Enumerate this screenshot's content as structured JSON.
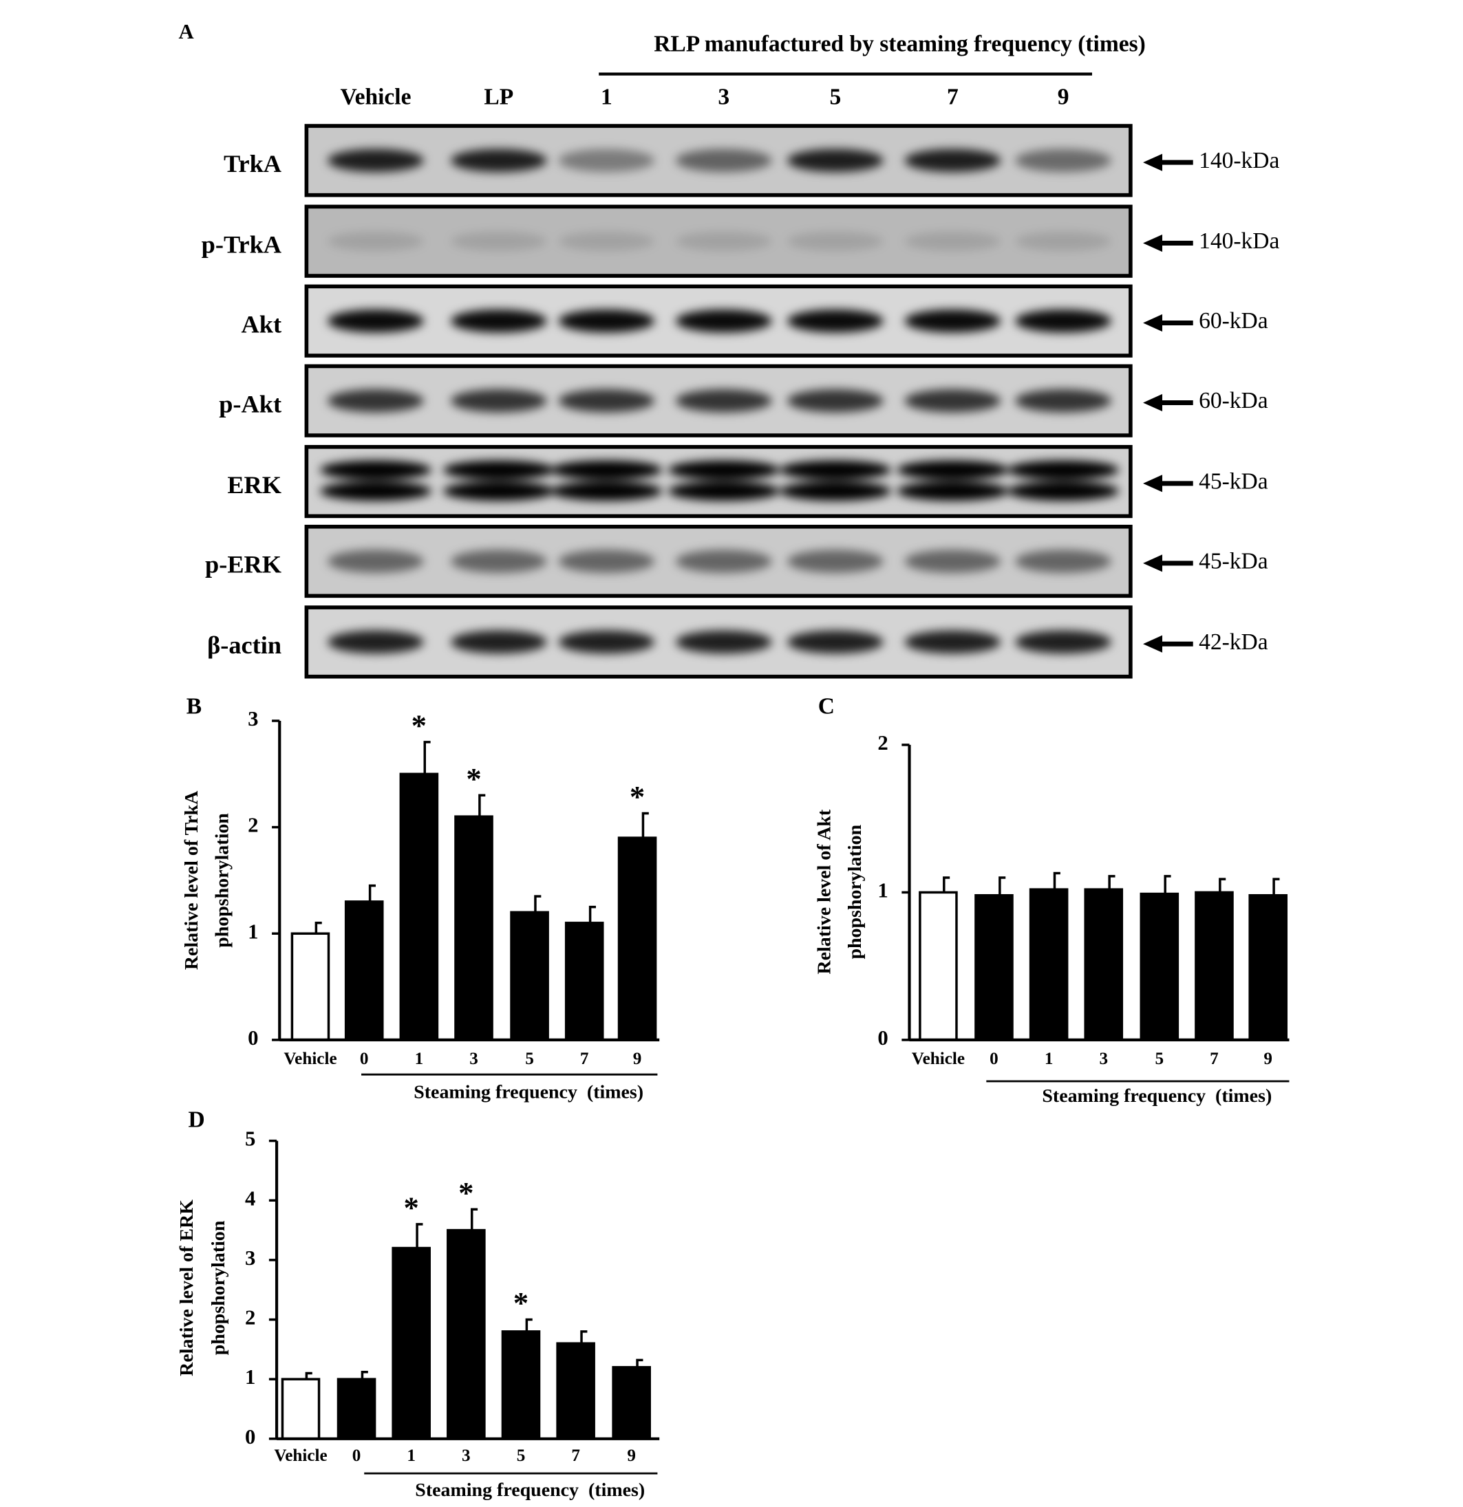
{
  "blot": {
    "panel_label": "A",
    "header": "RLP manufactured by steaming frequency (times)",
    "lanes": [
      "Vehicle",
      "LP",
      "1",
      "3",
      "5",
      "7",
      "9"
    ],
    "rows": [
      {
        "label": "TrkA",
        "size": "140-kDa"
      },
      {
        "label": "p-TrkA",
        "size": "140-kDa"
      },
      {
        "label": "Akt",
        "size": "60-kDa"
      },
      {
        "label": "p-Akt",
        "size": "60-kDa"
      },
      {
        "label": "ERK",
        "size": "45-kDa"
      },
      {
        "label": "p-ERK",
        "size": "45-kDa"
      },
      {
        "label": "β-actin",
        "size": "42-kDa"
      }
    ]
  },
  "chart_data": [
    {
      "type": "bar",
      "panel_label": "B",
      "ylabel": [
        "Relative level of TrkA",
        "phopshorylation"
      ],
      "xlabel": "Steaming frequency  (times)",
      "categories": [
        "Vehicle",
        "0",
        "1",
        "3",
        "5",
        "7",
        "9"
      ],
      "values": [
        1.0,
        1.3,
        2.5,
        2.1,
        1.2,
        1.1,
        1.9
      ],
      "errors": [
        0.1,
        0.15,
        0.3,
        0.2,
        0.15,
        0.15,
        0.23
      ],
      "markers": [
        null,
        null,
        "*",
        "*",
        null,
        null,
        "*"
      ],
      "colors": [
        "#ffffff",
        "#000000",
        "#000000",
        "#000000",
        "#000000",
        "#000000",
        "#000000"
      ],
      "ylim": [
        0,
        3
      ],
      "yticks": [
        0,
        1,
        2,
        3
      ]
    },
    {
      "type": "bar",
      "panel_label": "C",
      "ylabel": [
        "Relative level of Akt",
        "phopshorylation"
      ],
      "xlabel": "Steaming frequency  (times)",
      "categories": [
        "Vehicle",
        "0",
        "1",
        "3",
        "5",
        "7",
        "9"
      ],
      "values": [
        1.0,
        0.98,
        1.02,
        1.02,
        0.99,
        1.0,
        0.98
      ],
      "errors": [
        0.1,
        0.12,
        0.11,
        0.09,
        0.12,
        0.09,
        0.11
      ],
      "markers": [
        null,
        null,
        null,
        null,
        null,
        null,
        null
      ],
      "colors": [
        "#ffffff",
        "#000000",
        "#000000",
        "#000000",
        "#000000",
        "#000000",
        "#000000"
      ],
      "ylim": [
        0,
        2
      ],
      "yticks": [
        0,
        1,
        2
      ]
    },
    {
      "type": "bar",
      "panel_label": "D",
      "ylabel": [
        "Relative level of ERK",
        "phopshorylation"
      ],
      "xlabel": "Steaming frequency  (times)",
      "categories": [
        "Vehicle",
        "0",
        "1",
        "3",
        "5",
        "7",
        "9"
      ],
      "values": [
        1.0,
        1.0,
        3.2,
        3.5,
        1.8,
        1.6,
        1.2
      ],
      "errors": [
        0.1,
        0.12,
        0.4,
        0.35,
        0.2,
        0.2,
        0.12
      ],
      "markers": [
        null,
        null,
        "*",
        "*",
        "*",
        null,
        null
      ],
      "colors": [
        "#ffffff",
        "#000000",
        "#000000",
        "#000000",
        "#000000",
        "#000000",
        "#000000"
      ],
      "ylim": [
        0,
        5
      ],
      "yticks": [
        0,
        1,
        2,
        3,
        4,
        5
      ]
    }
  ]
}
